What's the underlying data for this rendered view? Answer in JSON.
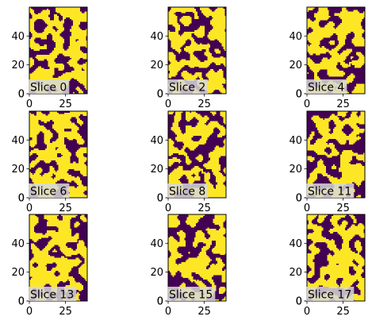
{
  "chart_data": {
    "type": "heatmap",
    "layout": "3x3 grid of binary image slices",
    "colormap": {
      "low": "#440154",
      "high": "#fde725"
    },
    "image_shape": {
      "rows": 60,
      "cols": 40
    },
    "origin": "lower",
    "xlim": [
      0,
      40
    ],
    "ylim": [
      0,
      60
    ],
    "xticks": [
      0,
      25
    ],
    "yticks": [
      0,
      20,
      40
    ],
    "label_box_color": "#d8d8d8",
    "panels": [
      {
        "label": "Slice 0",
        "seed": 11
      },
      {
        "label": "Slice 2",
        "seed": 23
      },
      {
        "label": "Slice 4",
        "seed": 37
      },
      {
        "label": "Slice 6",
        "seed": 41
      },
      {
        "label": "Slice 8",
        "seed": 53
      },
      {
        "label": "Slice 11",
        "seed": 67
      },
      {
        "label": "Slice 13",
        "seed": 71
      },
      {
        "label": "Slice 15",
        "seed": 83
      },
      {
        "label": "Slice 17",
        "seed": 97
      }
    ]
  }
}
